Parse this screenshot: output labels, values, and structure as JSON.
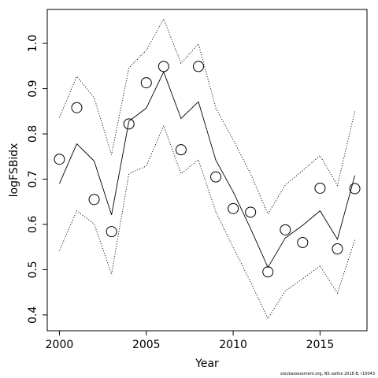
{
  "chart_data": {
    "type": "line",
    "xlabel": "Year",
    "ylabel": "logFSBidx",
    "footnote": "stockassessment.org, NS saithe 2018 B, r10043",
    "xlim": [
      1999.3,
      2017.7
    ],
    "ylim": [
      0.365,
      1.075
    ],
    "xticks": [
      2000,
      2005,
      2010,
      2015
    ],
    "yticks": [
      0.4,
      0.5,
      0.6,
      0.7,
      0.8,
      0.9,
      1.0
    ],
    "ytick_labels": [
      "0.4",
      "0.5",
      "0.6",
      "0.7",
      "0.8",
      "0.9",
      "1.0"
    ],
    "x": [
      2000,
      2001,
      2002,
      2003,
      2004,
      2005,
      2006,
      2007,
      2008,
      2009,
      2010,
      2011,
      2012,
      2013,
      2014,
      2015,
      2016,
      2017
    ],
    "series": [
      {
        "role": "observed",
        "style": "open-circle",
        "values": [
          0.744,
          0.858,
          0.655,
          0.584,
          0.822,
          0.913,
          0.949,
          0.765,
          0.949,
          0.705,
          0.635,
          0.627,
          0.495,
          0.588,
          0.56,
          0.68,
          0.546,
          0.679
        ]
      },
      {
        "role": "fitted",
        "style": "solid",
        "values": [
          0.69,
          0.778,
          0.74,
          0.621,
          0.828,
          0.857,
          0.937,
          0.834,
          0.871,
          0.742,
          0.672,
          0.591,
          0.505,
          0.57,
          0.598,
          0.63,
          0.567,
          0.708
        ]
      },
      {
        "role": "upper-ci",
        "style": "dotted",
        "values": [
          0.836,
          0.927,
          0.88,
          0.754,
          0.946,
          0.985,
          1.054,
          0.956,
          0.999,
          0.857,
          0.787,
          0.712,
          0.623,
          0.687,
          0.719,
          0.752,
          0.686,
          0.85
        ]
      },
      {
        "role": "lower-ci",
        "style": "dotted",
        "values": [
          0.542,
          0.63,
          0.601,
          0.49,
          0.712,
          0.729,
          0.818,
          0.712,
          0.743,
          0.628,
          0.549,
          0.473,
          0.392,
          0.453,
          0.48,
          0.508,
          0.448,
          0.566
        ]
      }
    ]
  }
}
